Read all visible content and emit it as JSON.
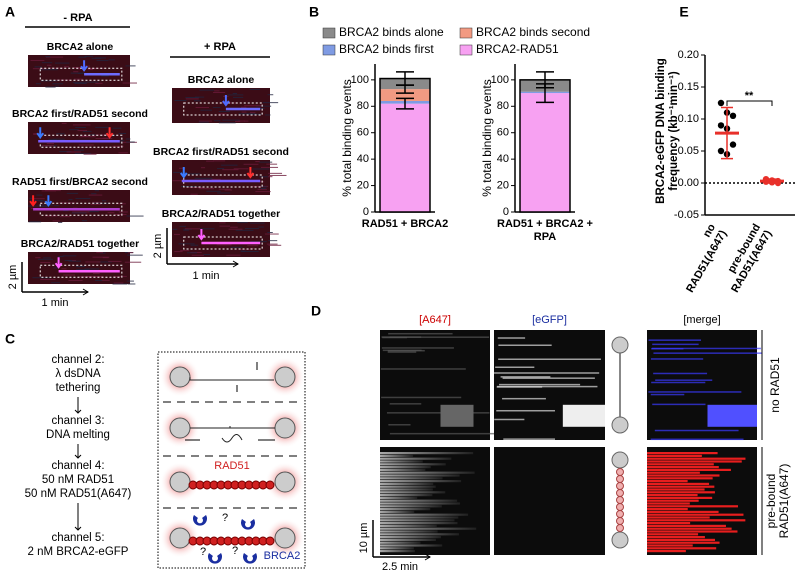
{
  "panel_a": {
    "label": "A",
    "minus_rpa": {
      "title": "- RPA",
      "kymographs": [
        "BRCA2 alone",
        "BRCA2 first/RAD51 second",
        "RAD51 first/BRCA2 second",
        "BRCA2/RAD51 together"
      ]
    },
    "plus_rpa": {
      "title": "+ RPA",
      "kymographs": [
        "BRCA2 alone",
        "BRCA2 first/RAD51 second",
        "BRCA2/RAD51 together"
      ]
    },
    "scale_bars": [
      {
        "distance": "2 µm",
        "time": "1 min"
      },
      {
        "distance": "2 µm",
        "time": "1 min"
      }
    ]
  },
  "panel_b": {
    "label": "B"
  },
  "panel_c": {
    "label": "C",
    "steps": [
      [
        "channel 2:",
        "λ dsDNA",
        "tethering"
      ],
      [
        "channel 3:",
        "DNA melting"
      ],
      [
        "channel 4:",
        "50 nM RAD51",
        "50 nM RAD51(A647)"
      ],
      [
        "channel 5:",
        "2 nM BRCA2-eGFP"
      ]
    ],
    "diagram_labels": {
      "rad51": "RAD51",
      "brca2": "BRCA2",
      "unknown": "?"
    }
  },
  "panel_d": {
    "label": "D",
    "channels": [
      "[A647]",
      "[eGFP]",
      "[merge]"
    ],
    "conditions": [
      "no RAD51",
      "pre-bound RAD51(A647)"
    ],
    "scale_bars": {
      "distance": "10 µm",
      "time": "2.5 min"
    }
  },
  "panel_e": {
    "label": "E"
  },
  "chart_data": [
    {
      "type": "bar",
      "stacked": true,
      "ylabel": "% total binding events",
      "categories": [
        "RAD51 + BRCA2"
      ],
      "ylim": [
        0,
        112
      ],
      "yticks": [
        0,
        20,
        40,
        60,
        80,
        100
      ],
      "series": [
        {
          "name": "BRCA2-RAD51",
          "color": "#f7a1f2",
          "values": [
            82
          ],
          "errors": [
            4
          ]
        },
        {
          "name": "BRCA2 binds first",
          "color": "#7f9be3",
          "values": [
            2
          ],
          "errors": [
            null
          ]
        },
        {
          "name": "BRCA2 binds second",
          "color": "#f29a82",
          "values": [
            9
          ],
          "errors": [
            3
          ]
        },
        {
          "name": "BRCA2 binds alone",
          "color": "#8a8a8a",
          "values": [
            8
          ],
          "errors": [
            5
          ]
        }
      ]
    },
    {
      "type": "bar",
      "stacked": true,
      "ylabel": "% total binding events",
      "categories": [
        "RAD51 + BRCA2 + RPA"
      ],
      "ylim": [
        0,
        112
      ],
      "yticks": [
        0,
        20,
        40,
        60,
        80,
        100
      ],
      "series": [
        {
          "color": "#f7a1f2",
          "values": [
            90
          ],
          "errors": [
            7
          ]
        },
        {
          "color": "#7f9be3",
          "values": [
            1
          ],
          "errors": [
            null
          ]
        },
        {
          "color": "#f29a82",
          "values": [
            0
          ],
          "errors": [
            null
          ]
        },
        {
          "color": "#8a8a8a",
          "values": [
            9
          ],
          "errors": [
            6
          ]
        }
      ]
    },
    {
      "type": "scatter",
      "ylabel": "BRCA2-eGFP DNA binding frequency (kb⁻¹min⁻¹)",
      "categories": [
        "no RAD51(A647)",
        "pre-bound RAD51(A647)"
      ],
      "points": [
        [
          0.125,
          0.11,
          0.105,
          0.09,
          0.085,
          0.06,
          0.05,
          0.045
        ],
        [
          0.006,
          0.004,
          0.003,
          0.002,
          0.001,
          0
        ]
      ],
      "means": [
        0.078,
        0.003
      ],
      "sd": [
        0.04,
        0.003
      ],
      "colors": [
        "#000000",
        "#e8302a"
      ],
      "summary_color": "#e8302a",
      "ylim": [
        -0.05,
        0.2
      ],
      "yticks": [
        -0.05,
        {
          "value": 0,
          "label": "0.00"
        },
        {
          "value": 0.05,
          "label": "0.05"
        },
        {
          "value": 0.1,
          "label": "0.10"
        },
        {
          "value": 0.15,
          "label": "0.15"
        },
        {
          "value": 0.2,
          "label": "0.20"
        }
      ],
      "zero_line": true,
      "annotation": "**"
    }
  ]
}
